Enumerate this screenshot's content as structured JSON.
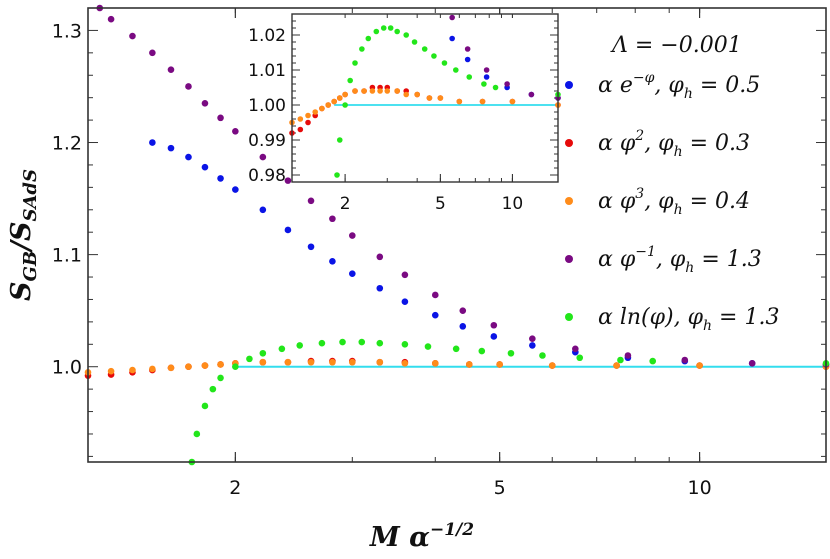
{
  "chart_data": {
    "type": "scatter",
    "title": "",
    "xlabel": "M α^(-1/2)",
    "ylabel": "S_GB / S_SAdS",
    "x_scale": "log",
    "xlim": [
      1.2,
      15.5
    ],
    "ylim": [
      0.915,
      1.32
    ],
    "x_ticks": [
      "2",
      "5",
      "10"
    ],
    "y_ticks": [
      "1.0",
      "1.1",
      "1.2",
      "1.3"
    ],
    "reference_line": {
      "y": 1.0,
      "color": "#33ddee"
    },
    "annotation": "Λ = −0.001",
    "legend_position": "right",
    "series": [
      {
        "name": "α e^{−φ}, φ_h = 0.5",
        "legend": {
          "prefix": "α e",
          "sup": "−φ",
          "suffix": ",  φ",
          "sub": "h",
          "value": " = 0.5"
        },
        "color": "#0a14e6",
        "points": [
          [
            1.5,
            1.2
          ],
          [
            1.6,
            1.195
          ],
          [
            1.7,
            1.187
          ],
          [
            1.8,
            1.178
          ],
          [
            1.9,
            1.168
          ],
          [
            2.0,
            1.158
          ],
          [
            2.2,
            1.14
          ],
          [
            2.4,
            1.122
          ],
          [
            2.6,
            1.107
          ],
          [
            2.8,
            1.094
          ],
          [
            3.0,
            1.083
          ],
          [
            3.3,
            1.07
          ],
          [
            3.6,
            1.058
          ],
          [
            4.0,
            1.046
          ],
          [
            4.4,
            1.036
          ],
          [
            4.9,
            1.027
          ],
          [
            5.6,
            1.019
          ],
          [
            6.5,
            1.013
          ],
          [
            7.8,
            1.008
          ],
          [
            9.5,
            1.005
          ],
          [
            12.0,
            1.003
          ],
          [
            15.5,
            1.002
          ]
        ]
      },
      {
        "name": "α φ², φ_h = 0.3",
        "legend": {
          "prefix": "α φ",
          "sup": "2",
          "suffix": ",  φ",
          "sub": "h",
          "value": " = 0.3"
        },
        "color": "#e60a0a",
        "points": [
          [
            1.2,
            0.992
          ],
          [
            1.3,
            0.993
          ],
          [
            1.4,
            0.995
          ],
          [
            1.5,
            0.997
          ],
          [
            1.6,
            0.999
          ],
          [
            1.7,
            1.0
          ],
          [
            1.8,
            1.001
          ],
          [
            1.9,
            1.002
          ],
          [
            2.0,
            1.003
          ],
          [
            2.2,
            1.004
          ],
          [
            2.4,
            1.004
          ],
          [
            2.6,
            1.005
          ],
          [
            2.8,
            1.005
          ],
          [
            3.0,
            1.005
          ],
          [
            3.3,
            1.004
          ],
          [
            3.6,
            1.004
          ],
          [
            4.0,
            1.003
          ],
          [
            4.5,
            1.002
          ],
          [
            5.0,
            1.002
          ],
          [
            6.0,
            1.001
          ],
          [
            7.5,
            1.001
          ],
          [
            10.0,
            1.001
          ],
          [
            15.5,
            1.0
          ]
        ]
      },
      {
        "name": "α φ³, φ_h = 0.4",
        "legend": {
          "prefix": "α φ",
          "sup": "3",
          "suffix": ",  φ",
          "sub": "h",
          "value": " = 0.4"
        },
        "color": "#ff8c1a",
        "points": [
          [
            1.2,
            0.995
          ],
          [
            1.3,
            0.996
          ],
          [
            1.4,
            0.997
          ],
          [
            1.5,
            0.998
          ],
          [
            1.6,
            0.999
          ],
          [
            1.7,
            1.0
          ],
          [
            1.8,
            1.001
          ],
          [
            1.9,
            1.002
          ],
          [
            2.0,
            1.003
          ],
          [
            2.2,
            1.004
          ],
          [
            2.4,
            1.004
          ],
          [
            2.6,
            1.004
          ],
          [
            2.8,
            1.004
          ],
          [
            3.0,
            1.004
          ],
          [
            3.3,
            1.004
          ],
          [
            3.6,
            1.003
          ],
          [
            4.0,
            1.003
          ],
          [
            4.5,
            1.002
          ],
          [
            5.0,
            1.002
          ],
          [
            6.0,
            1.001
          ],
          [
            7.5,
            1.001
          ],
          [
            10.0,
            1.001
          ],
          [
            15.5,
            1.0
          ]
        ]
      },
      {
        "name": "α φ^{−1}, φ_h = 1.3",
        "legend": {
          "prefix": "α φ",
          "sup": "−1",
          "suffix": ",  φ",
          "sub": "h",
          "value": " = 1.3"
        },
        "color": "#7a0a82",
        "points": [
          [
            1.25,
            1.32
          ],
          [
            1.3,
            1.31
          ],
          [
            1.4,
            1.295
          ],
          [
            1.5,
            1.28
          ],
          [
            1.6,
            1.265
          ],
          [
            1.7,
            1.25
          ],
          [
            1.8,
            1.235
          ],
          [
            1.9,
            1.222
          ],
          [
            2.0,
            1.21
          ],
          [
            2.2,
            1.187
          ],
          [
            2.4,
            1.166
          ],
          [
            2.6,
            1.148
          ],
          [
            2.8,
            1.132
          ],
          [
            3.0,
            1.117
          ],
          [
            3.3,
            1.098
          ],
          [
            3.6,
            1.082
          ],
          [
            4.0,
            1.064
          ],
          [
            4.4,
            1.05
          ],
          [
            4.9,
            1.037
          ],
          [
            5.6,
            1.025
          ],
          [
            6.5,
            1.016
          ],
          [
            7.8,
            1.01
          ],
          [
            9.5,
            1.006
          ],
          [
            12.0,
            1.003
          ],
          [
            15.5,
            1.002
          ]
        ]
      },
      {
        "name": "α ln(φ), φ_h = 1.3",
        "legend": {
          "prefix": "α  ln(φ)",
          "sup": "",
          "suffix": ",  φ",
          "sub": "h",
          "value": " = 1.3"
        },
        "color": "#22e61a",
        "points": [
          [
            1.72,
            0.915
          ],
          [
            1.75,
            0.94
          ],
          [
            1.8,
            0.965
          ],
          [
            1.85,
            0.98
          ],
          [
            1.9,
            0.99
          ],
          [
            2.0,
            1.0
          ],
          [
            2.1,
            1.007
          ],
          [
            2.2,
            1.012
          ],
          [
            2.35,
            1.016
          ],
          [
            2.5,
            1.019
          ],
          [
            2.7,
            1.021
          ],
          [
            2.9,
            1.022
          ],
          [
            3.1,
            1.022
          ],
          [
            3.3,
            1.021
          ],
          [
            3.6,
            1.02
          ],
          [
            3.9,
            1.018
          ],
          [
            4.3,
            1.016
          ],
          [
            4.7,
            1.014
          ],
          [
            5.2,
            1.012
          ],
          [
            5.8,
            1.01
          ],
          [
            6.6,
            1.008
          ],
          [
            7.6,
            1.006
          ],
          [
            8.5,
            1.005
          ],
          [
            15.5,
            1.003
          ]
        ]
      }
    ],
    "inset": {
      "xlim": [
        1.2,
        15.5
      ],
      "ylim": [
        0.978,
        1.026
      ],
      "x_ticks": [
        "2",
        "5",
        "10"
      ],
      "y_ticks": [
        "0.98",
        "0.99",
        "1.00",
        "1.01",
        "1.02"
      ]
    }
  }
}
